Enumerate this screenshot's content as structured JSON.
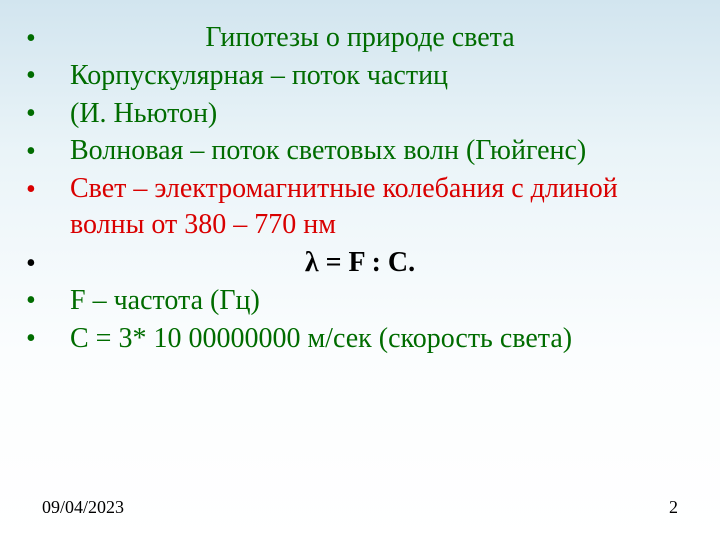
{
  "colors": {
    "heading_text": "#006c00",
    "body_text": "#006c00",
    "highlight_text": "#d90000",
    "formula_text": "#000000",
    "footer_text": "#000000",
    "bg_gradient_top": "#d2e5ef",
    "bg_gradient_bottom": "#ffffff"
  },
  "typography": {
    "font_family": "Times New Roman",
    "base_fontsize_pt": 21,
    "footer_fontsize_pt": 13
  },
  "bullets": {
    "title": {
      "char": "•",
      "text": "Гипотезы о природе света",
      "align": "center"
    },
    "lines": [
      {
        "char": "•",
        "text": "Корпускулярная – поток частиц",
        "color": "body"
      },
      {
        "char": "•",
        "text": "(И. Ньютон)",
        "color": "body"
      },
      {
        "char": "•",
        "text": "Волновая – поток световых волн (Гюйгенс)",
        "color": "body"
      },
      {
        "char": "•",
        "text": "Свет – электромагнитные колебания с длиной волны от 380 – 770 нм",
        "color": "highlight"
      }
    ],
    "formula": {
      "char": "•",
      "text": "λ = F : C.",
      "bold": true,
      "align": "center"
    },
    "defs": [
      {
        "char": "•",
        "text": "F – частота (Гц)",
        "color": "body"
      },
      {
        "char": "•",
        "text": "С = 3* 10 00000000 м/сек (скорость света)",
        "color": "body"
      }
    ]
  },
  "footer": {
    "date": "09/04/2023",
    "page": "2"
  }
}
